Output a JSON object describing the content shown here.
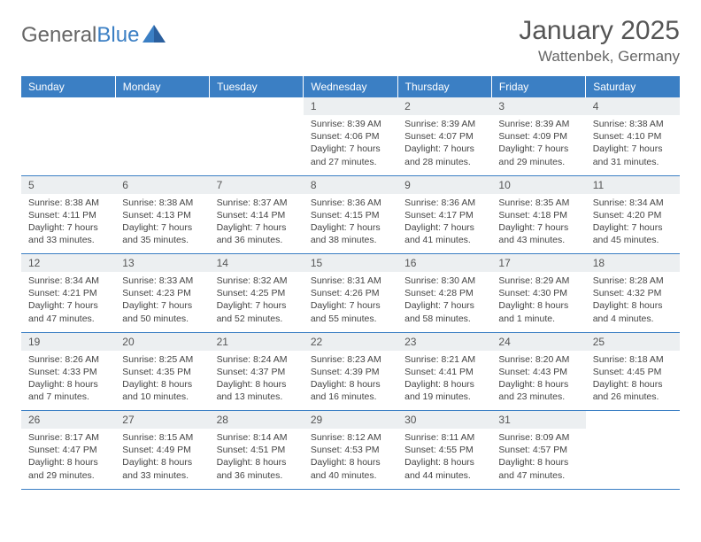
{
  "logo": {
    "part1": "General",
    "part2": "Blue"
  },
  "title": "January 2025",
  "location": "Wattenbek, Germany",
  "colors": {
    "header_bg": "#3b7fc4",
    "header_text": "#ffffff",
    "daynum_bg": "#eceff1",
    "body_text": "#444444",
    "title_text": "#555555",
    "border": "#3b7fc4"
  },
  "typography": {
    "title_fontsize": 30,
    "location_fontsize": 17,
    "header_fontsize": 12,
    "cell_fontsize": 10.5
  },
  "dayHeaders": [
    "Sunday",
    "Monday",
    "Tuesday",
    "Wednesday",
    "Thursday",
    "Friday",
    "Saturday"
  ],
  "weeks": [
    [
      null,
      null,
      null,
      {
        "n": "1",
        "sr": "8:39 AM",
        "ss": "4:06 PM",
        "dl": "7 hours and 27 minutes."
      },
      {
        "n": "2",
        "sr": "8:39 AM",
        "ss": "4:07 PM",
        "dl": "7 hours and 28 minutes."
      },
      {
        "n": "3",
        "sr": "8:39 AM",
        "ss": "4:09 PM",
        "dl": "7 hours and 29 minutes."
      },
      {
        "n": "4",
        "sr": "8:38 AM",
        "ss": "4:10 PM",
        "dl": "7 hours and 31 minutes."
      }
    ],
    [
      {
        "n": "5",
        "sr": "8:38 AM",
        "ss": "4:11 PM",
        "dl": "7 hours and 33 minutes."
      },
      {
        "n": "6",
        "sr": "8:38 AM",
        "ss": "4:13 PM",
        "dl": "7 hours and 35 minutes."
      },
      {
        "n": "7",
        "sr": "8:37 AM",
        "ss": "4:14 PM",
        "dl": "7 hours and 36 minutes."
      },
      {
        "n": "8",
        "sr": "8:36 AM",
        "ss": "4:15 PM",
        "dl": "7 hours and 38 minutes."
      },
      {
        "n": "9",
        "sr": "8:36 AM",
        "ss": "4:17 PM",
        "dl": "7 hours and 41 minutes."
      },
      {
        "n": "10",
        "sr": "8:35 AM",
        "ss": "4:18 PM",
        "dl": "7 hours and 43 minutes."
      },
      {
        "n": "11",
        "sr": "8:34 AM",
        "ss": "4:20 PM",
        "dl": "7 hours and 45 minutes."
      }
    ],
    [
      {
        "n": "12",
        "sr": "8:34 AM",
        "ss": "4:21 PM",
        "dl": "7 hours and 47 minutes."
      },
      {
        "n": "13",
        "sr": "8:33 AM",
        "ss": "4:23 PM",
        "dl": "7 hours and 50 minutes."
      },
      {
        "n": "14",
        "sr": "8:32 AM",
        "ss": "4:25 PM",
        "dl": "7 hours and 52 minutes."
      },
      {
        "n": "15",
        "sr": "8:31 AM",
        "ss": "4:26 PM",
        "dl": "7 hours and 55 minutes."
      },
      {
        "n": "16",
        "sr": "8:30 AM",
        "ss": "4:28 PM",
        "dl": "7 hours and 58 minutes."
      },
      {
        "n": "17",
        "sr": "8:29 AM",
        "ss": "4:30 PM",
        "dl": "8 hours and 1 minute."
      },
      {
        "n": "18",
        "sr": "8:28 AM",
        "ss": "4:32 PM",
        "dl": "8 hours and 4 minutes."
      }
    ],
    [
      {
        "n": "19",
        "sr": "8:26 AM",
        "ss": "4:33 PM",
        "dl": "8 hours and 7 minutes."
      },
      {
        "n": "20",
        "sr": "8:25 AM",
        "ss": "4:35 PM",
        "dl": "8 hours and 10 minutes."
      },
      {
        "n": "21",
        "sr": "8:24 AM",
        "ss": "4:37 PM",
        "dl": "8 hours and 13 minutes."
      },
      {
        "n": "22",
        "sr": "8:23 AM",
        "ss": "4:39 PM",
        "dl": "8 hours and 16 minutes."
      },
      {
        "n": "23",
        "sr": "8:21 AM",
        "ss": "4:41 PM",
        "dl": "8 hours and 19 minutes."
      },
      {
        "n": "24",
        "sr": "8:20 AM",
        "ss": "4:43 PM",
        "dl": "8 hours and 23 minutes."
      },
      {
        "n": "25",
        "sr": "8:18 AM",
        "ss": "4:45 PM",
        "dl": "8 hours and 26 minutes."
      }
    ],
    [
      {
        "n": "26",
        "sr": "8:17 AM",
        "ss": "4:47 PM",
        "dl": "8 hours and 29 minutes."
      },
      {
        "n": "27",
        "sr": "8:15 AM",
        "ss": "4:49 PM",
        "dl": "8 hours and 33 minutes."
      },
      {
        "n": "28",
        "sr": "8:14 AM",
        "ss": "4:51 PM",
        "dl": "8 hours and 36 minutes."
      },
      {
        "n": "29",
        "sr": "8:12 AM",
        "ss": "4:53 PM",
        "dl": "8 hours and 40 minutes."
      },
      {
        "n": "30",
        "sr": "8:11 AM",
        "ss": "4:55 PM",
        "dl": "8 hours and 44 minutes."
      },
      {
        "n": "31",
        "sr": "8:09 AM",
        "ss": "4:57 PM",
        "dl": "8 hours and 47 minutes."
      },
      null
    ]
  ],
  "labels": {
    "sunrise": "Sunrise:",
    "sunset": "Sunset:",
    "daylight": "Daylight:"
  }
}
